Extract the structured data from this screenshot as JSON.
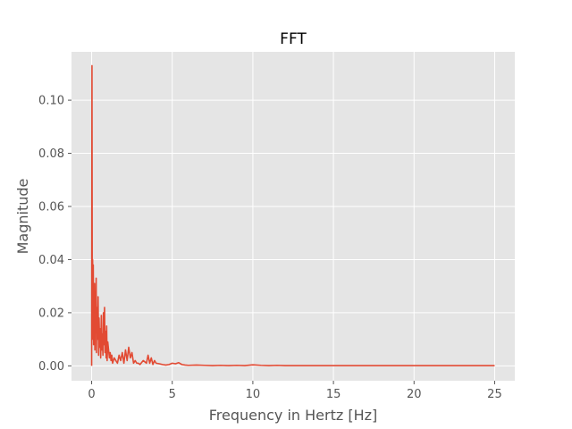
{
  "chart_data": {
    "type": "line",
    "title": "FFT",
    "xlabel": "Frequency in Hertz [Hz]",
    "ylabel": "Magnitude",
    "xlim": [
      -1.25,
      26.25
    ],
    "ylim": [
      -0.0056,
      0.1182
    ],
    "x_ticks": [
      0,
      5,
      10,
      15,
      20,
      25
    ],
    "x_tick_labels": [
      "0",
      "5",
      "10",
      "15",
      "20",
      "25"
    ],
    "y_ticks": [
      0.0,
      0.02,
      0.04,
      0.06,
      0.08,
      0.1
    ],
    "y_tick_labels": [
      "0.00",
      "0.02",
      "0.04",
      "0.06",
      "0.08",
      "0.10"
    ],
    "grid": true,
    "background_color": "#e5e5e5",
    "grid_color": "#ffffff",
    "series": [
      {
        "color": "#e24a33",
        "x": [
          0,
          0.02,
          0.04,
          0.06,
          0.08,
          0.1,
          0.12,
          0.14,
          0.16,
          0.18,
          0.2,
          0.22,
          0.25,
          0.28,
          0.3,
          0.33,
          0.36,
          0.4,
          0.43,
          0.46,
          0.5,
          0.53,
          0.56,
          0.6,
          0.63,
          0.66,
          0.7,
          0.73,
          0.76,
          0.8,
          0.83,
          0.86,
          0.9,
          0.93,
          0.96,
          1.0,
          1.05,
          1.1,
          1.15,
          1.2,
          1.25,
          1.3,
          1.4,
          1.5,
          1.6,
          1.7,
          1.8,
          1.9,
          2.0,
          2.1,
          2.2,
          2.3,
          2.4,
          2.5,
          2.6,
          2.7,
          2.8,
          2.9,
          3.0,
          3.2,
          3.4,
          3.5,
          3.6,
          3.7,
          3.8,
          3.9,
          4.0,
          4.2,
          4.4,
          4.6,
          4.8,
          5.0,
          5.2,
          5.4,
          5.6,
          5.8,
          6.0,
          6.5,
          7.0,
          7.5,
          8.0,
          8.5,
          9.0,
          9.5,
          10.0,
          10.5,
          11.0,
          11.5,
          12.0,
          13.0,
          14.0,
          15.0,
          16.0,
          17.0,
          18.0,
          19.0,
          20.0,
          21.0,
          22.0,
          23.0,
          24.0,
          25.0
        ],
        "y": [
          0.0,
          0.113,
          0.01,
          0.04,
          0.015,
          0.038,
          0.008,
          0.025,
          0.012,
          0.031,
          0.006,
          0.028,
          0.015,
          0.033,
          0.005,
          0.022,
          0.01,
          0.026,
          0.004,
          0.018,
          0.007,
          0.014,
          0.003,
          0.019,
          0.006,
          0.012,
          0.004,
          0.02,
          0.008,
          0.022,
          0.005,
          0.013,
          0.003,
          0.015,
          0.002,
          0.009,
          0.006,
          0.003,
          0.005,
          0.002,
          0.004,
          0.001,
          0.003,
          0.002,
          0.001,
          0.004,
          0.002,
          0.005,
          0.001,
          0.006,
          0.002,
          0.007,
          0.003,
          0.005,
          0.001,
          0.002,
          0.001,
          0.001,
          0.0005,
          0.002,
          0.001,
          0.004,
          0.001,
          0.003,
          0.0005,
          0.002,
          0.001,
          0.0008,
          0.0005,
          0.0003,
          0.0005,
          0.001,
          0.0008,
          0.0012,
          0.0005,
          0.0003,
          0.0002,
          0.0003,
          0.0002,
          0.0001,
          0.0002,
          0.0001,
          0.0002,
          0.0001,
          0.0004,
          0.0002,
          0.0001,
          0.0002,
          0.0001,
          0.0001,
          0.0001,
          0.0001,
          0.0001,
          0.0001,
          0.0001,
          0.0001,
          0.0001,
          0.0001,
          0.0001,
          0.0001,
          0.0001,
          0.0001
        ]
      }
    ]
  }
}
